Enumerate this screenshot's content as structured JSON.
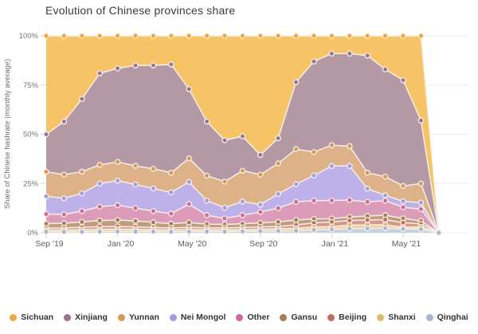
{
  "title": "Evolution of Chinese provinces share",
  "chart_data": {
    "type": "area",
    "stacked": true,
    "unit": "%",
    "title": "Evolution of Chinese provinces share",
    "ylabel": "Share of Chinese hashrate (monthly average)",
    "xlabel": "",
    "ylim": [
      0,
      100
    ],
    "y_ticks": [
      0,
      25,
      50,
      75,
      100
    ],
    "y_tick_labels": [
      "0%",
      "25%",
      "50%",
      "75%",
      "100%"
    ],
    "grid": true,
    "legend_position": "bottom",
    "x": [
      "Sep '19",
      "Oct '19",
      "Nov '19",
      "Dec '19",
      "Jan '20",
      "Feb '20",
      "Mar '20",
      "Apr '20",
      "May '20",
      "Jun '20",
      "Jul '20",
      "Aug '20",
      "Sep '20",
      "Oct '20",
      "Nov '20",
      "Dec '20",
      "Jan '21",
      "Feb '21",
      "Mar '21",
      "Apr '21",
      "May '21",
      "Jun '21",
      "Jul '21"
    ],
    "x_axis_tick_indices": [
      0,
      4,
      8,
      12,
      16,
      20
    ],
    "x_axis_tick_labels": [
      "Sep '19",
      "Jan '20",
      "May '20",
      "Sep '20",
      "Jan '21",
      "May '21"
    ],
    "stack_order_bottom_to_top": [
      "Qinghai",
      "Shanxi",
      "Beijing",
      "Gansu",
      "Other",
      "Nei Mongol",
      "Yunnan",
      "Xinjiang",
      "Sichuan"
    ],
    "series": [
      {
        "name": "Sichuan",
        "area_color": "#f7c367",
        "dot_color": "#efa73e",
        "values": [
          50,
          43.5,
          32,
          19,
          16.5,
          15,
          15,
          14.5,
          27,
          43.5,
          53,
          51,
          60.5,
          52,
          23.5,
          13,
          9,
          9,
          10,
          17,
          22.5,
          43,
          0
        ]
      },
      {
        "name": "Xinjiang",
        "area_color": "#b499a5",
        "dot_color": "#9b7590",
        "values": [
          19,
          27,
          37,
          46.5,
          47.5,
          51,
          52.5,
          55,
          35.2,
          27.5,
          21,
          17.5,
          10,
          12.8,
          34,
          46,
          46.5,
          47,
          59.5,
          54.5,
          53.7,
          32,
          0
        ]
      },
      {
        "name": "Yunnan",
        "area_color": "#deb288",
        "dot_color": "#d7995a",
        "values": [
          12.5,
          12,
          11,
          9.5,
          9.5,
          9.5,
          10,
          10,
          12,
          12.7,
          13.3,
          15.6,
          15.2,
          15.5,
          17.8,
          11.9,
          10.6,
          10.1,
          8.1,
          9.5,
          7.8,
          9.7,
          0
        ]
      },
      {
        "name": "Nei Mongol",
        "area_color": "#beb0e9",
        "dot_color": "#a79ae4",
        "values": [
          9,
          8.2,
          9,
          11.8,
          12.5,
          12,
          11.5,
          10.8,
          11.2,
          7.4,
          5.4,
          7,
          3.8,
          7.2,
          9,
          12.8,
          17.5,
          17.3,
          6.7,
          2.7,
          3,
          3.3,
          0
        ]
      },
      {
        "name": "Other",
        "area_color": "#dc9bb9",
        "dot_color": "#d2679c",
        "values": [
          4.9,
          4.5,
          5.5,
          7,
          7.5,
          6.5,
          5.7,
          5.1,
          9.4,
          4.5,
          3.1,
          4.3,
          5.5,
          7,
          9.2,
          9.3,
          9.2,
          8.6,
          7.2,
          7.4,
          5.7,
          6,
          0
        ]
      },
      {
        "name": "Gansu",
        "area_color": "#c09c7c",
        "dot_color": "#a87c50",
        "values": [
          2.2,
          2.3,
          2.7,
          3.1,
          3.3,
          3,
          2.5,
          2.2,
          2.4,
          1.9,
          1.7,
          1.9,
          2,
          2.3,
          2.5,
          2,
          1.7,
          1.8,
          2,
          2.2,
          2.2,
          1.5,
          0
        ]
      },
      {
        "name": "Beijing",
        "area_color": "#d6978d",
        "dot_color": "#c46b60",
        "values": [
          1,
          1.1,
          1.3,
          1.4,
          1.4,
          1.3,
          1.2,
          1,
          1.2,
          1,
          1,
          1.1,
          1.2,
          1.2,
          1.7,
          2,
          2.4,
          2.3,
          2.5,
          2.6,
          2.3,
          1.5,
          0
        ]
      },
      {
        "name": "Shanxi",
        "area_color": "#ecd59e",
        "dot_color": "#ddbb6b",
        "values": [
          0.9,
          0.9,
          1,
          1.1,
          1.2,
          1.1,
          1,
          0.9,
          1,
          0.9,
          0.9,
          0.9,
          1,
          1.1,
          1.3,
          1.5,
          1.4,
          1.8,
          1.8,
          1.8,
          0.8,
          1.2,
          0
        ]
      },
      {
        "name": "Qinghai",
        "area_color": "#c8cfdf",
        "dot_color": "#aab5cd",
        "values": [
          0.5,
          0.5,
          0.5,
          0.6,
          0.6,
          0.6,
          0.6,
          0.5,
          0.6,
          0.6,
          0.6,
          0.7,
          0.8,
          0.9,
          1,
          1.5,
          1.7,
          2.1,
          2.2,
          2.3,
          2,
          1.8,
          0
        ]
      }
    ]
  },
  "style": {
    "grid_color": "#ececf1",
    "tick_color": "#cfcfd8",
    "axis_text_color": "#76767e",
    "boundary_stroke": "#f5efe7"
  }
}
